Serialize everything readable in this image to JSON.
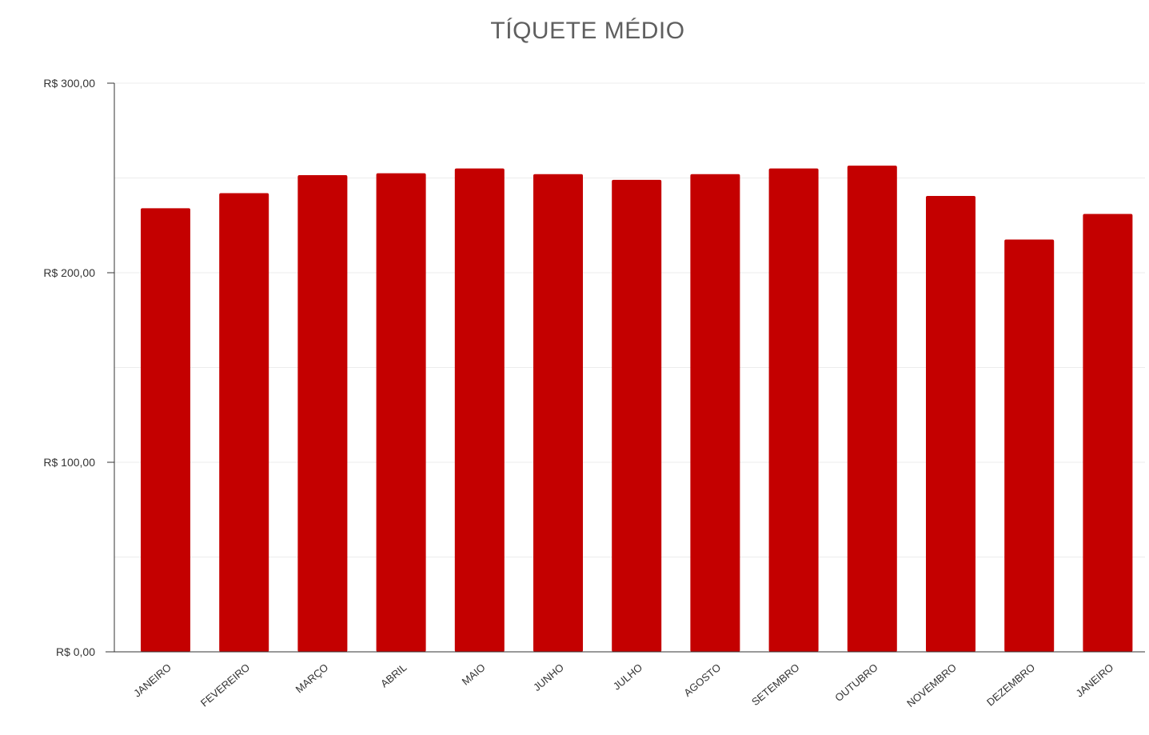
{
  "colors": {
    "bar": "#c40000",
    "title": "#5f5f5f",
    "axis": "#333333",
    "grid": "#ececec"
  },
  "chart_data": {
    "type": "bar",
    "title": "TÍQUETE MÉDIO",
    "xlabel": "",
    "ylabel": "",
    "categories": [
      "JANEIRO",
      "FEVEREIRO",
      "MARÇO",
      "ABRIL",
      "MAIO",
      "JUNHO",
      "JULHO",
      "AGOSTO",
      "SETEMBRO",
      "OUTUBRO",
      "NOVEMBRO",
      "DEZEMBRO",
      "JANEIRO"
    ],
    "values": [
      234,
      242,
      251.5,
      252.5,
      255,
      252,
      249,
      252,
      255,
      256.5,
      240.5,
      217.5,
      231
    ],
    "ylim": [
      0,
      300
    ],
    "yticks": [
      0,
      100,
      200,
      300
    ],
    "ytick_labels": [
      "R$ 0,00",
      "R$ 100,00",
      "R$ 200,00",
      "R$ 300,00"
    ],
    "grid": true,
    "legend": "none"
  }
}
